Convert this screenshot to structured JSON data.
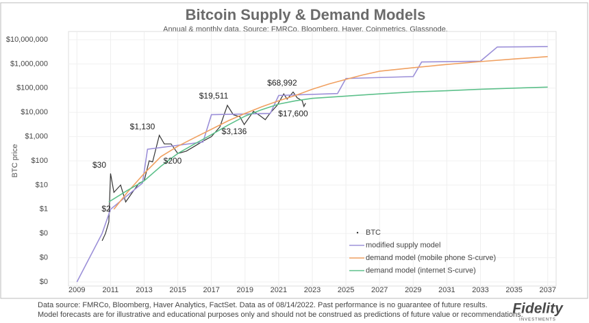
{
  "chart_data": {
    "type": "line",
    "title": "Bitcoin Supply & Demand Models",
    "subtitle": "Annual & monthly data.  Source: FMRCo, Bloomberg, Haver, Coinmetrics, Glassnode.",
    "y_label": "BTC price",
    "log_y": true,
    "grid": true,
    "legend": "lower right",
    "xlim": [
      2008.5,
      2037.5
    ],
    "xticks": [
      2009,
      2011,
      2013,
      2015,
      2017,
      2019,
      2021,
      2023,
      2025,
      2027,
      2029,
      2031,
      2033,
      2035,
      2037
    ],
    "ylim": [
      0.001,
      10000000
    ],
    "yticks": [
      {
        "value": 10000000,
        "label": "$10,000,000"
      },
      {
        "value": 1000000,
        "label": "$1,000,000"
      },
      {
        "value": 100000,
        "label": "$100,000"
      },
      {
        "value": 10000,
        "label": "$10,000"
      },
      {
        "value": 1000,
        "label": "$1,000"
      },
      {
        "value": 100,
        "label": "$100"
      },
      {
        "value": 10,
        "label": "$10"
      },
      {
        "value": 1,
        "label": "$1"
      },
      {
        "value": 0.1,
        "label": "$0"
      },
      {
        "value": 0.01,
        "label": "$0"
      },
      {
        "value": 0.001,
        "label": "$0"
      }
    ],
    "series": [
      {
        "name": "BTC",
        "color": "#333333",
        "x": [
          2010.5,
          2010.7,
          2010.9,
          2011.0,
          2011.2,
          2011.6,
          2011.9,
          2012.3,
          2012.7,
          2013.0,
          2013.3,
          2013.5,
          2013.9,
          2014.2,
          2014.6,
          2015.0,
          2015.5,
          2016.0,
          2016.5,
          2017.0,
          2017.5,
          2017.95,
          2018.3,
          2018.7,
          2018.95,
          2019.5,
          2019.9,
          2020.2,
          2020.5,
          2020.9,
          2021.3,
          2021.5,
          2021.86,
          2022.1,
          2022.4,
          2022.5,
          2022.6
        ],
        "values": [
          0.05,
          0.1,
          0.3,
          30,
          5,
          10,
          2,
          5,
          12,
          15,
          100,
          90,
          1130,
          500,
          500,
          200,
          250,
          400,
          650,
          1000,
          2500,
          19511,
          8000,
          6500,
          3136,
          11000,
          7200,
          5000,
          9500,
          19000,
          58000,
          35000,
          68992,
          40000,
          30000,
          17600,
          24000
        ]
      },
      {
        "name": "modified supply model",
        "color": "#9b8fd8",
        "x": [
          2009,
          2010.5,
          2011,
          2012.9,
          2013.2,
          2016.5,
          2017.0,
          2020.5,
          2021.0,
          2024.5,
          2025,
          2029,
          2029.5,
          2033,
          2034,
          2037
        ],
        "values": [
          0.001,
          0.1,
          1,
          12,
          300,
          600,
          8000,
          9000,
          50000,
          60000,
          250000,
          300000,
          1200000,
          1300000,
          5000000,
          5200000
        ]
      },
      {
        "name": "demand model (mobile phone S-curve)",
        "color": "#f0a060",
        "x": [
          2011.2,
          2012,
          2013,
          2014,
          2015,
          2016,
          2017,
          2018,
          2019,
          2020,
          2021,
          2022,
          2023,
          2024,
          2025,
          2026,
          2027,
          2029,
          2031,
          2033,
          2035,
          2037
        ],
        "values": [
          1,
          5,
          30,
          150,
          400,
          900,
          2000,
          4500,
          9000,
          17000,
          30000,
          50000,
          90000,
          150000,
          230000,
          350000,
          500000,
          700000,
          950000,
          1250000,
          1600000,
          2000000
        ]
      },
      {
        "name": "demand model (internet S-curve)",
        "color": "#5cc08a",
        "x": [
          2010.9,
          2012,
          2013,
          2014,
          2015,
          2016,
          2017,
          2018,
          2019,
          2020,
          2021,
          2022,
          2023,
          2025,
          2027,
          2029,
          2031,
          2033,
          2035,
          2037
        ],
        "values": [
          2,
          6,
          15,
          60,
          200,
          500,
          1200,
          3000,
          7000,
          13000,
          22000,
          30000,
          38000,
          47000,
          58000,
          70000,
          78000,
          90000,
          100000,
          110000
        ]
      }
    ],
    "annotations": [
      "$30",
      "$2",
      "$1,130",
      "$200",
      "$19,511",
      "$3,136",
      "$68,992",
      "$17,600"
    ],
    "footer": [
      "Data source: FMRCo, Bloomberg, Haver Analytics, FactSet. Data as of 08/14/2022. Past performance is no guarantee of future results.",
      "Model forecasts are for illustrative and educational purposes only and should not be construed as predictions of future value or recommendations."
    ],
    "logo": "Fidelity",
    "logo_sub": "INVESTMENTS"
  }
}
